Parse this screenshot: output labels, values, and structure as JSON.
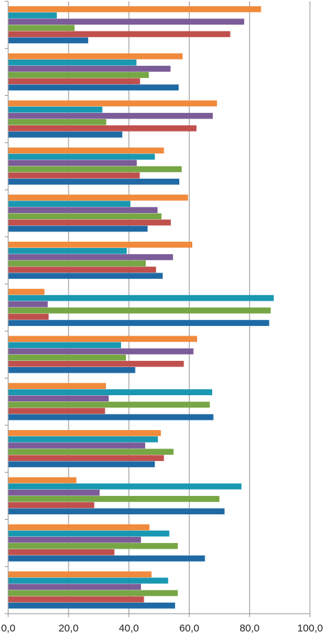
{
  "chart_data": {
    "type": "bar",
    "orientation": "horizontal",
    "xlim": [
      0,
      100
    ],
    "x_ticks": [
      0,
      20,
      40,
      60,
      80,
      100
    ],
    "x_tick_labels": [
      "0,0",
      "20,0",
      "40,0",
      "60,0",
      "80,0",
      "100,0"
    ],
    "grid": true,
    "legend": "none",
    "category_count": 13,
    "series": [
      {
        "color": "#1f6aa5",
        "values": [
          26.5,
          56.5,
          37.8,
          56.7,
          46.2,
          51.2,
          86.5,
          42.1,
          68.0,
          48.6,
          71.7,
          65.2,
          55.3
        ]
      },
      {
        "color": "#c0504d",
        "values": [
          73.6,
          43.7,
          62.4,
          43.6,
          53.9,
          49.0,
          13.4,
          58.2,
          32.1,
          51.6,
          28.5,
          35.2,
          45.0
        ]
      },
      {
        "color": "#77a645",
        "values": [
          22.0,
          46.6,
          32.5,
          57.5,
          50.8,
          45.6,
          87.0,
          39.0,
          66.8,
          54.8,
          70.0,
          56.2,
          56.2
        ]
      },
      {
        "color": "#7b5c98",
        "values": [
          78.2,
          53.8,
          67.8,
          42.6,
          49.5,
          54.6,
          13.1,
          61.4,
          33.3,
          45.4,
          30.3,
          44.0,
          44.0
        ]
      },
      {
        "color": "#1a98b1",
        "values": [
          16.1,
          42.5,
          31.2,
          48.6,
          40.5,
          39.3,
          88.0,
          37.4,
          67.6,
          49.6,
          77.3,
          53.4,
          53.0
        ]
      },
      {
        "color": "#f08a3c",
        "values": [
          83.8,
          57.8,
          69.2,
          51.6,
          59.6,
          61.0,
          12.0,
          62.6,
          32.4,
          50.6,
          22.6,
          46.8,
          47.5
        ]
      }
    ]
  }
}
